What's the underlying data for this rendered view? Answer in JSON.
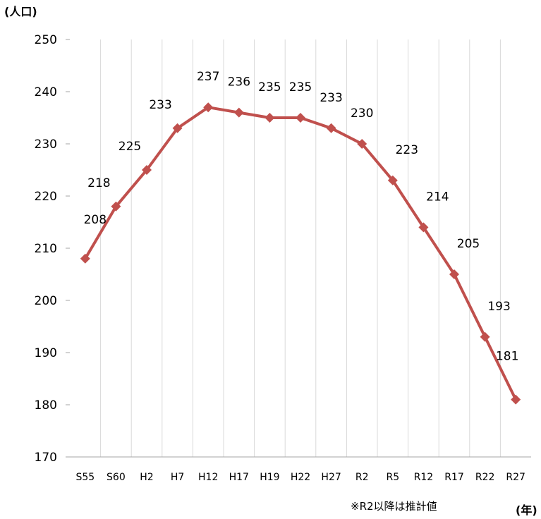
{
  "chart_data": {
    "type": "line",
    "y_unit_label": "(人口)",
    "x_unit_label": "(年)",
    "note": "※R2以降は推計値",
    "categories": [
      "S55",
      "S60",
      "H2",
      "H7",
      "H12",
      "H17",
      "H19",
      "H22",
      "H27",
      "R2",
      "R5",
      "R12",
      "R17",
      "R22",
      "R27"
    ],
    "series": [
      {
        "values": [
          208,
          218,
          225,
          233,
          237,
          236,
          235,
          235,
          233,
          230,
          223,
          214,
          205,
          193,
          181
        ]
      }
    ],
    "ylim": [
      170,
      250
    ],
    "yticks": [
      170,
      180,
      190,
      200,
      210,
      220,
      230,
      240,
      250
    ],
    "grid": "vertical-only",
    "colors": {
      "line": "#c0504d",
      "marker": "#c0504d",
      "grid": "#d9d9d9",
      "axis": "#a6a6a6"
    },
    "data_labels": true
  }
}
